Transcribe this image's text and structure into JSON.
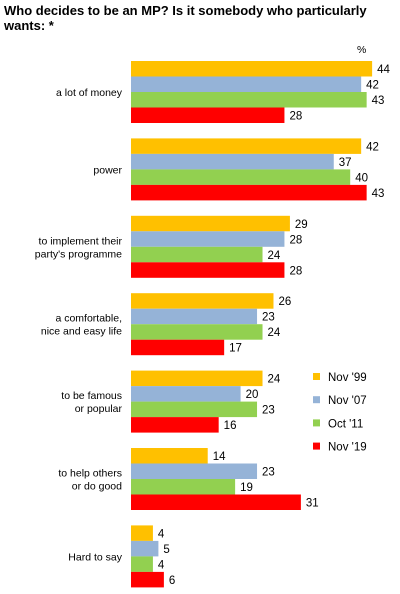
{
  "chart_data": {
    "type": "bar",
    "orientation": "horizontal",
    "title": "Who decides to be an MP? Is it somebody who particularly wants: *",
    "unit": "%",
    "categories": [
      "a lot of money",
      "power",
      "to implement their party's programme",
      "a comfortable, nice and easy life",
      "to be famous or popular",
      "to help others or do good",
      "Hard to say"
    ],
    "category_lines": [
      [
        "a lot of money"
      ],
      [
        "power"
      ],
      [
        "to implement their",
        "party's programme"
      ],
      [
        "a comfortable,",
        "nice and easy life"
      ],
      [
        "to be famous",
        "or popular"
      ],
      [
        "to help others",
        "or do good"
      ],
      [
        "Hard to say"
      ]
    ],
    "series": [
      {
        "name": "Nov '99",
        "color": "#ffc000",
        "values": [
          44,
          42,
          29,
          26,
          24,
          14,
          4
        ]
      },
      {
        "name": "Nov '07",
        "color": "#95b3d7",
        "values": [
          42,
          37,
          28,
          23,
          20,
          23,
          5
        ]
      },
      {
        "name": "Oct '11",
        "color": "#92d050",
        "values": [
          43,
          40,
          24,
          24,
          23,
          19,
          4
        ]
      },
      {
        "name": "Nov '19",
        "color": "#ff0000",
        "values": [
          28,
          43,
          28,
          17,
          16,
          31,
          6
        ]
      }
    ],
    "xlim": [
      0,
      44
    ],
    "legend_position": "right",
    "grid": false
  }
}
